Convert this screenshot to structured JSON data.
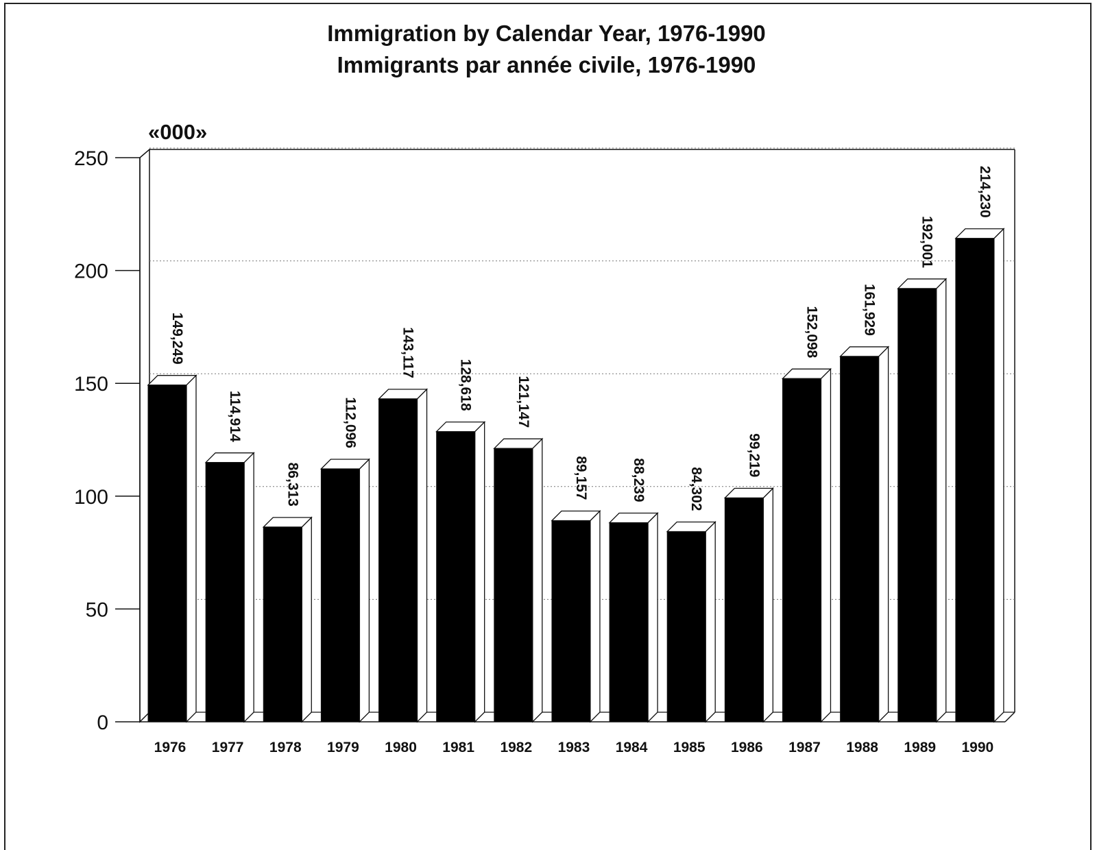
{
  "chart_data": {
    "type": "bar",
    "title": "Immigration by Calendar Year, 1976-1990",
    "subtitle": "Immigrants par année civile, 1976-1990",
    "unit_label": "«000»",
    "xlabel": "",
    "ylabel": "",
    "ylim": [
      0,
      250
    ],
    "yticks": [
      "0",
      "50",
      "100",
      "150",
      "200",
      "250"
    ],
    "grid": true,
    "categories": [
      "1976",
      "1977",
      "1978",
      "1979",
      "1980",
      "1981",
      "1982",
      "1983",
      "1984",
      "1985",
      "1986",
      "1987",
      "1988",
      "1989",
      "1990"
    ],
    "values": [
      149.249,
      114.914,
      86.313,
      112.096,
      143.117,
      128.618,
      121.147,
      89.157,
      88.239,
      84.302,
      99.219,
      152.098,
      161.929,
      192.001,
      214.23
    ],
    "data_labels": [
      "149,249",
      "114,914",
      "86,313",
      "112,096",
      "143,117",
      "128,618",
      "121,147",
      "89,157",
      "88,239",
      "84,302",
      "99,219",
      "152,098",
      "161,929",
      "192,001",
      "214,230"
    ],
    "bar_color": "#000000",
    "bar_side_color": "#ffffff"
  }
}
